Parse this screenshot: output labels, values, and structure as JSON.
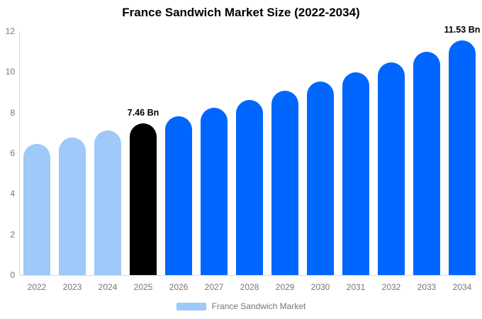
{
  "title": "France Sandwich Market Size (2022-2034)",
  "chart_data": {
    "type": "bar",
    "title": "France Sandwich Market Size (2022-2034)",
    "categories": [
      "2022",
      "2023",
      "2024",
      "2025",
      "2026",
      "2027",
      "2028",
      "2029",
      "2030",
      "2031",
      "2032",
      "2033",
      "2034"
    ],
    "values": [
      6.45,
      6.77,
      7.11,
      7.46,
      7.83,
      8.22,
      8.63,
      9.06,
      9.51,
      9.98,
      10.47,
      10.99,
      11.53
    ],
    "bar_colors": [
      "#9ec9f8",
      "#9ec9f8",
      "#9ec9f8",
      "#000000",
      "#0066fd",
      "#0066fd",
      "#0066fd",
      "#0066fd",
      "#0066fd",
      "#0066fd",
      "#0066fd",
      "#0066fd",
      "#0066fd"
    ],
    "data_labels": [
      {
        "category": "2025",
        "text": "7.46 Bn"
      },
      {
        "category": "2034",
        "text": "11.53 Bn"
      }
    ],
    "xlabel": "",
    "ylabel": "",
    "ylim": [
      0,
      12
    ],
    "yticks": [
      0,
      2,
      4,
      6,
      8,
      10,
      12
    ],
    "grid": false,
    "legend": {
      "position": "bottom",
      "items": [
        {
          "label": "France Sandwich Market",
          "color": "#9ec9f8"
        }
      ]
    }
  },
  "colors": {
    "light_blue": "#9ec9f8",
    "primary_blue": "#0066fd",
    "highlight_black": "#000000",
    "axis_line": "#d9d9d9",
    "tick_label": "#757575",
    "title_text": "#000000"
  }
}
